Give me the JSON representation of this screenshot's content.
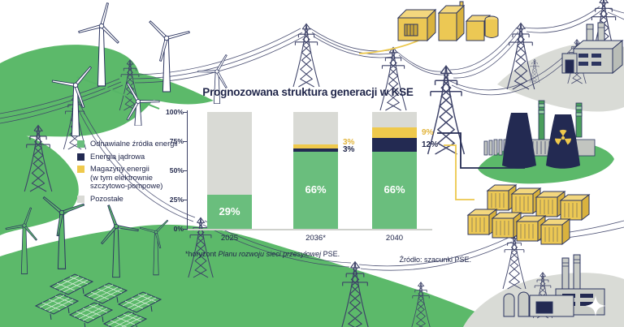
{
  "infographic": {
    "title": "Prognozowana struktura generacji w KSE",
    "footnote_prefix": "*horyzont ",
    "footnote_italic": "Planu rozwoju sieci przesyłowej",
    "footnote_suffix": " PSE.",
    "source": "Źródło: szacunki PSE."
  },
  "legend": {
    "items": [
      {
        "label": "Odnawialne źródła energii",
        "color": "#6abe7d"
      },
      {
        "label": "Energia jądrowa",
        "color": "#232a52"
      },
      {
        "label": "Magazyny energii\n(w tym elektrownie\nszczytowo-pompowe)",
        "color": "#efc94c"
      },
      {
        "label": "Pozostałe",
        "color": "#d9dad5"
      }
    ]
  },
  "chart_data": {
    "type": "bar",
    "stacked": true,
    "title": "Prognozowana struktura generacji w KSE",
    "categories": [
      "2025",
      "2036*",
      "2040"
    ],
    "series": [
      {
        "name": "Odnawialne źródła energii",
        "color": "#6abe7d",
        "values": [
          29,
          66,
          66
        ]
      },
      {
        "name": "Energia jądrowa",
        "color": "#232a52",
        "values": [
          0,
          3,
          12
        ]
      },
      {
        "name": "Magazyny energii (w tym elektrownie szczytowo-pompowe)",
        "color": "#efc94c",
        "values": [
          0,
          3,
          9
        ]
      },
      {
        "name": "Pozostałe",
        "color": "#d9dad5",
        "values": [
          71,
          28,
          13
        ]
      }
    ],
    "bar_labels": [
      "29%",
      "66%",
      "66%"
    ],
    "side_labels": [
      {
        "bar": 1,
        "series": 2,
        "text": "3%",
        "color": "#e2b53d"
      },
      {
        "bar": 1,
        "series": 1,
        "text": "3%",
        "color": "#20264a"
      },
      {
        "bar": 2,
        "series": 2,
        "text": "9%",
        "color": "#e2b53d"
      },
      {
        "bar": 2,
        "series": 1,
        "text": "12%",
        "color": "#20264a"
      }
    ],
    "y_ticks": [
      "0%",
      "25%",
      "50%",
      "75%",
      "100%"
    ],
    "ylim": [
      0,
      100
    ],
    "grid": false,
    "legend_position": "left"
  },
  "illustrations": {
    "items": [
      "wind-farm",
      "solar-panels",
      "transmission-pylons",
      "power-lines",
      "pumped-storage-facility",
      "nuclear-power-plant",
      "battery-energy-storage",
      "factory-top-right",
      "factory-bottom-right"
    ]
  },
  "accent_colors": {
    "green": "#5cb96a",
    "navy": "#232a52",
    "yellow": "#ecc854",
    "gray": "#d9dbd6"
  }
}
